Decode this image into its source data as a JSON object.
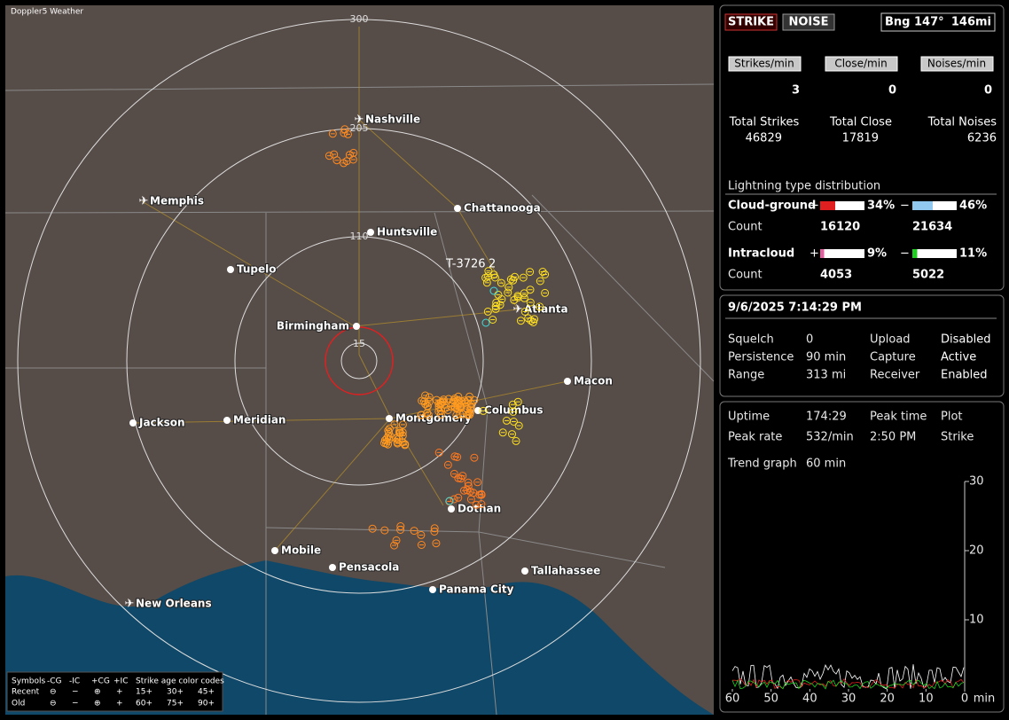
{
  "app_title": "Doppler5 Weather",
  "map": {
    "range_labels": [
      "300",
      "205",
      "110",
      "15"
    ],
    "cities": [
      {
        "name": "Nashville",
        "airport": true
      },
      {
        "name": "Memphis",
        "airport": true
      },
      {
        "name": "Chattanooga",
        "airport": false
      },
      {
        "name": "Huntsville",
        "airport": false
      },
      {
        "name": "Tupelo",
        "airport": false
      },
      {
        "name": "Atlanta",
        "airport": true
      },
      {
        "name": "Birmingham",
        "airport": false
      },
      {
        "name": "Macon",
        "airport": false
      },
      {
        "name": "Columbus",
        "airport": false
      },
      {
        "name": "Montgomery",
        "airport": false
      },
      {
        "name": "Meridian",
        "airport": false
      },
      {
        "name": "Jackson",
        "airport": false
      },
      {
        "name": "Dothan",
        "airport": false
      },
      {
        "name": "Mobile",
        "airport": false
      },
      {
        "name": "Pensacola",
        "airport": false
      },
      {
        "name": "Tallahassee",
        "airport": false
      },
      {
        "name": "Panama City",
        "airport": false
      },
      {
        "name": "New Orleans",
        "airport": true
      }
    ],
    "marker": "T-3726",
    "marker_count": "2"
  },
  "legend": {
    "symbols": "Symbols",
    "columns": [
      "-CG",
      "-IC",
      "+CG",
      "+IC"
    ],
    "recent": "Recent",
    "old": "Old",
    "age_title": "Strike age color codes",
    "age_recent": [
      "15+",
      "30+",
      "45+"
    ],
    "age_old": [
      "60+",
      "75+",
      "90+"
    ]
  },
  "panel": {
    "strike": "STRIKE",
    "noise": "NOISE",
    "bearing": "Bng 147°",
    "distance": "146mi",
    "rates": [
      {
        "label": "Strikes/min",
        "value": 3
      },
      {
        "label": "Close/min",
        "value": 0
      },
      {
        "label": "Noises/min",
        "value": 0
      }
    ],
    "totals": [
      {
        "label": "Total Strikes",
        "value": 46829
      },
      {
        "label": "Total Close",
        "value": 17819
      },
      {
        "label": "Total Noises",
        "value": 6236
      }
    ],
    "distribution_title": "Lightning type distribution",
    "types": [
      {
        "name": "Cloud-ground",
        "pos": {
          "value": 34,
          "label": "34%"
        },
        "neg": {
          "value": 46,
          "label": "46%"
        },
        "count_label": "Count",
        "pos_count": 16120,
        "neg_count": 21634
      },
      {
        "name": "Intracloud",
        "pos": {
          "value": 9,
          "label": "9%"
        },
        "neg": {
          "value": 11,
          "label": "11%"
        },
        "count_label": "Count",
        "pos_count": 4053,
        "neg_count": 5022
      }
    ],
    "plus": "+",
    "minus": "−",
    "datetime": "9/6/2025 7:14:29 PM",
    "settings": [
      {
        "label": "Squelch",
        "value": "0",
        "label2": "Upload",
        "value2": "Disabled"
      },
      {
        "label": "Persistence",
        "value": "90 min",
        "label2": "Capture",
        "value2": "Active"
      },
      {
        "label": "Range",
        "value": "313 mi",
        "label2": "Receiver",
        "value2": "Enabled"
      }
    ],
    "uptime_label": "Uptime",
    "uptime": "174:29",
    "peak_time_label": "Peak time",
    "peak_time": "2:50 PM",
    "plot_label": "Plot",
    "peak_rate_label": "Peak rate",
    "peak_rate": "532/min",
    "plot": "Strike",
    "trend_label": "Trend graph",
    "trend": "60 min"
  },
  "trend_graph": {
    "ylim": [
      0,
      30
    ],
    "yticks": [
      10,
      20,
      30
    ],
    "xlim": [
      60,
      0
    ],
    "xticks": [
      60,
      50,
      40,
      30,
      20,
      10,
      0
    ],
    "x_unit": "min"
  }
}
